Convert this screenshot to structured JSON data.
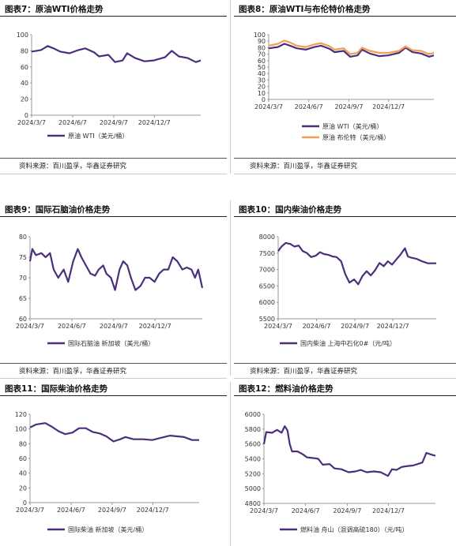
{
  "sources": {
    "row1_left": "资料来源：百川盈孚，华鑫证券研究",
    "row1_right": "资料来源：百川盈孚，华鑫证券研究",
    "row2_left": "资料来源：百川盈孚，华鑫证券研究",
    "row2_right": "资料来源：百川盈孚，华鑫证券研究"
  },
  "colors": {
    "purple": "#4b2f7f",
    "orange": "#f0a050",
    "axis": "#999999",
    "text": "#333333"
  },
  "chart_data": [
    {
      "id": "c7",
      "title": "图表7：原油WTI价格走势",
      "type": "line",
      "ylim": [
        0,
        100
      ],
      "yticks": [
        0,
        20,
        40,
        60,
        80,
        100
      ],
      "xticks": [
        "2024/3/7",
        "2024/6/7",
        "2024/9/7",
        "2024/12/7"
      ],
      "x_domain": [
        "2024/3/7",
        "2025/3/21"
      ],
      "series": [
        {
          "name": "原油 WTI（美元/桶）",
          "color": "#4b2f7f",
          "points": [
            [
              "2024/3/7",
              79
            ],
            [
              "2024/3/28",
              81
            ],
            [
              "2024/4/12",
              86
            ],
            [
              "2024/4/25",
              83
            ],
            [
              "2024/5/10",
              79
            ],
            [
              "2024/5/31",
              77
            ],
            [
              "2024/6/20",
              81
            ],
            [
              "2024/7/5",
              83
            ],
            [
              "2024/7/25",
              78
            ],
            [
              "2024/8/5",
              73
            ],
            [
              "2024/8/26",
              75
            ],
            [
              "2024/9/10",
              66
            ],
            [
              "2024/9/27",
              68
            ],
            [
              "2024/10/7",
              77
            ],
            [
              "2024/10/25",
              71
            ],
            [
              "2024/11/15",
              67
            ],
            [
              "2024/12/6",
              68
            ],
            [
              "2024/12/31",
              72
            ],
            [
              "2025/1/15",
              80
            ],
            [
              "2025/1/31",
              73
            ],
            [
              "2025/2/20",
              71
            ],
            [
              "2025/3/10",
              66
            ],
            [
              "2025/3/21",
              68
            ]
          ]
        }
      ]
    },
    {
      "id": "c8",
      "title": "图表8：原油WTI与布伦特价格走势",
      "type": "line",
      "ylim": [
        0,
        100
      ],
      "yticks": [
        0,
        10,
        20,
        30,
        40,
        50,
        60,
        70,
        80,
        90,
        100
      ],
      "xticks": [
        "2024/3/7",
        "2024/6/7",
        "2024/9/7",
        "2024/12/7"
      ],
      "x_domain": [
        "2024/3/7",
        "2025/3/21"
      ],
      "series": [
        {
          "name": "原油 WTI（美元/桶）",
          "color": "#4b2f7f",
          "points": [
            [
              "2024/3/7",
              79
            ],
            [
              "2024/3/28",
              81
            ],
            [
              "2024/4/12",
              86
            ],
            [
              "2024/4/25",
              83
            ],
            [
              "2024/5/10",
              79
            ],
            [
              "2024/5/31",
              77
            ],
            [
              "2024/6/20",
              81
            ],
            [
              "2024/7/5",
              83
            ],
            [
              "2024/7/25",
              78
            ],
            [
              "2024/8/5",
              73
            ],
            [
              "2024/8/26",
              75
            ],
            [
              "2024/9/10",
              66
            ],
            [
              "2024/9/27",
              68
            ],
            [
              "2024/10/7",
              77
            ],
            [
              "2024/10/25",
              71
            ],
            [
              "2024/11/15",
              67
            ],
            [
              "2024/12/6",
              68
            ],
            [
              "2024/12/31",
              72
            ],
            [
              "2025/1/15",
              80
            ],
            [
              "2025/1/31",
              73
            ],
            [
              "2025/2/20",
              71
            ],
            [
              "2025/3/10",
              66
            ],
            [
              "2025/3/21",
              68
            ]
          ]
        },
        {
          "name": "原油 布伦特（美元/桶）",
          "color": "#f0a050",
          "points": [
            [
              "2024/3/7",
              83
            ],
            [
              "2024/3/28",
              86
            ],
            [
              "2024/4/12",
              91
            ],
            [
              "2024/4/25",
              88
            ],
            [
              "2024/5/10",
              83
            ],
            [
              "2024/5/31",
              81
            ],
            [
              "2024/6/20",
              85
            ],
            [
              "2024/7/5",
              87
            ],
            [
              "2024/7/25",
              82
            ],
            [
              "2024/8/5",
              77
            ],
            [
              "2024/8/26",
              79
            ],
            [
              "2024/9/10",
              70
            ],
            [
              "2024/9/27",
              72
            ],
            [
              "2024/10/7",
              80
            ],
            [
              "2024/10/25",
              75
            ],
            [
              "2024/11/15",
              72
            ],
            [
              "2024/12/6",
              72
            ],
            [
              "2024/12/31",
              75
            ],
            [
              "2025/1/15",
              82
            ],
            [
              "2025/1/31",
              76
            ],
            [
              "2025/2/20",
              75
            ],
            [
              "2025/3/10",
              70
            ],
            [
              "2025/3/21",
              72
            ]
          ]
        }
      ]
    },
    {
      "id": "c9",
      "title": "图表9：国际石脑油价格走势",
      "type": "line",
      "ylim": [
        60,
        80
      ],
      "yticks": [
        60,
        65,
        70,
        75,
        80
      ],
      "xticks": [
        "2024/3/7",
        "2024/6/7",
        "2024/9/7",
        "2024/12/7"
      ],
      "x_domain": [
        "2024/3/7",
        "2025/3/21"
      ],
      "series": [
        {
          "name": "国际石脑油 新加坡（美元/桶）",
          "color": "#4b2f7f",
          "points": [
            [
              "2024/3/7",
              74
            ],
            [
              "2024/3/12",
              77
            ],
            [
              "2024/3/20",
              75.5
            ],
            [
              "2024/4/1",
              76
            ],
            [
              "2024/4/10",
              75
            ],
            [
              "2024/4/20",
              76
            ],
            [
              "2024/4/28",
              72
            ],
            [
              "2024/5/8",
              70
            ],
            [
              "2024/5/20",
              72
            ],
            [
              "2024/5/30",
              69
            ],
            [
              "2024/6/10",
              74
            ],
            [
              "2024/6/20",
              77
            ],
            [
              "2024/6/28",
              75
            ],
            [
              "2024/7/8",
              73
            ],
            [
              "2024/7/18",
              71
            ],
            [
              "2024/7/28",
              70.5
            ],
            [
              "2024/8/5",
              72
            ],
            [
              "2024/8/15",
              73
            ],
            [
              "2024/8/22",
              71
            ],
            [
              "2024/9/1",
              70
            ],
            [
              "2024/9/10",
              67
            ],
            [
              "2024/9/20",
              72
            ],
            [
              "2024/9/28",
              74
            ],
            [
              "2024/10/7",
              73
            ],
            [
              "2024/10/15",
              70
            ],
            [
              "2024/10/25",
              67
            ],
            [
              "2024/11/5",
              68
            ],
            [
              "2024/11/15",
              70
            ],
            [
              "2024/11/25",
              70
            ],
            [
              "2024/12/6",
              69
            ],
            [
              "2024/12/16",
              71
            ],
            [
              "2024/12/26",
              72
            ],
            [
              "2025/1/5",
              72
            ],
            [
              "2025/1/15",
              75
            ],
            [
              "2025/1/25",
              74
            ],
            [
              "2025/2/5",
              72
            ],
            [
              "2025/2/15",
              72.5
            ],
            [
              "2025/2/25",
              72
            ],
            [
              "2025/3/5",
              70
            ],
            [
              "2025/3/12",
              72
            ],
            [
              "2025/3/21",
              67.5
            ]
          ]
        }
      ]
    },
    {
      "id": "c10",
      "title": "图表10：国内柴油价格走势",
      "type": "line",
      "ylim": [
        5500,
        8000
      ],
      "yticks": [
        5500,
        6000,
        6500,
        7000,
        7500,
        8000
      ],
      "xticks": [
        "2024/3/7",
        "2024/6/7",
        "2024/9/7",
        "2024/12/7"
      ],
      "x_domain": [
        "2024/3/7",
        "2025/3/21"
      ],
      "series": [
        {
          "name": "国内柴油 上海中石化0#（元/吨）",
          "color": "#4b2f7f",
          "points": [
            [
              "2024/3/7",
              7560
            ],
            [
              "2024/3/15",
              7700
            ],
            [
              "2024/3/25",
              7810
            ],
            [
              "2024/4/5",
              7780
            ],
            [
              "2024/4/15",
              7700
            ],
            [
              "2024/4/25",
              7730
            ],
            [
              "2024/5/5",
              7560
            ],
            [
              "2024/5/15",
              7500
            ],
            [
              "2024/5/25",
              7380
            ],
            [
              "2024/6/5",
              7420
            ],
            [
              "2024/6/15",
              7530
            ],
            [
              "2024/6/25",
              7470
            ],
            [
              "2024/7/5",
              7450
            ],
            [
              "2024/7/15",
              7400
            ],
            [
              "2024/7/25",
              7380
            ],
            [
              "2024/8/5",
              7250
            ],
            [
              "2024/8/15",
              6850
            ],
            [
              "2024/8/25",
              6600
            ],
            [
              "2024/9/5",
              6700
            ],
            [
              "2024/9/15",
              6550
            ],
            [
              "2024/9/25",
              6800
            ],
            [
              "2024/10/5",
              6950
            ],
            [
              "2024/10/15",
              6820
            ],
            [
              "2024/10/25",
              6970
            ],
            [
              "2024/11/5",
              7200
            ],
            [
              "2024/11/15",
              7100
            ],
            [
              "2024/11/25",
              7250
            ],
            [
              "2024/12/5",
              7150
            ],
            [
              "2024/12/15",
              7300
            ],
            [
              "2024/12/25",
              7450
            ],
            [
              "2025/1/5",
              7650
            ],
            [
              "2025/1/12",
              7400
            ],
            [
              "2025/1/20",
              7360
            ],
            [
              "2025/2/1",
              7330
            ],
            [
              "2025/2/15",
              7250
            ],
            [
              "2025/3/1",
              7190
            ],
            [
              "2025/3/21",
              7190
            ]
          ]
        }
      ]
    },
    {
      "id": "c11",
      "title": "图表11：国际柴油价格走势",
      "type": "line",
      "ylim": [
        0,
        120
      ],
      "yticks": [
        0,
        20,
        40,
        60,
        80,
        100,
        120
      ],
      "xticks": [
        "2024/3/7",
        "2024/6/7",
        "2024/9/7",
        "2024/12/7"
      ],
      "x_domain": [
        "2024/3/7",
        "2025/3/21"
      ],
      "series": [
        {
          "name": "国际柴油 新加坡（美元/桶）",
          "color": "#4b2f7f",
          "points": [
            [
              "2024/3/7",
              102
            ],
            [
              "2024/3/20",
              106
            ],
            [
              "2024/4/10",
              108
            ],
            [
              "2024/4/25",
              103
            ],
            [
              "2024/5/10",
              97
            ],
            [
              "2024/5/25",
              93
            ],
            [
              "2024/6/10",
              95
            ],
            [
              "2024/6/25",
              101
            ],
            [
              "2024/7/10",
              101
            ],
            [
              "2024/7/25",
              96
            ],
            [
              "2024/8/10",
              94
            ],
            [
              "2024/8/25",
              90
            ],
            [
              "2024/9/10",
              83
            ],
            [
              "2024/9/25",
              86
            ],
            [
              "2024/10/7",
              89
            ],
            [
              "2024/10/25",
              86
            ],
            [
              "2024/11/15",
              86
            ],
            [
              "2024/12/6",
              85
            ],
            [
              "2024/12/25",
              88
            ],
            [
              "2025/1/15",
              91
            ],
            [
              "2025/1/31",
              90
            ],
            [
              "2025/2/15",
              89
            ],
            [
              "2025/3/5",
              85
            ],
            [
              "2025/3/21",
              85
            ]
          ]
        }
      ]
    },
    {
      "id": "c12",
      "title": "图表12：燃料油价格走势",
      "type": "line",
      "ylim": [
        4800,
        6000
      ],
      "yticks": [
        4800,
        5000,
        5200,
        5400,
        5600,
        5800,
        6000
      ],
      "xticks": [
        "2024/3/7",
        "2024/6/7",
        "2024/9/7",
        "2024/12/7"
      ],
      "x_domain": [
        "2024/3/7",
        "2025/3/21"
      ],
      "series": [
        {
          "name": "燃料油 舟山（混调高硫180）（元/吨）",
          "color": "#4b2f7f",
          "points": [
            [
              "2024/3/7",
              5600
            ],
            [
              "2024/3/12",
              5760
            ],
            [
              "2024/3/25",
              5750
            ],
            [
              "2024/4/5",
              5790
            ],
            [
              "2024/4/15",
              5750
            ],
            [
              "2024/4/22",
              5840
            ],
            [
              "2024/4/28",
              5780
            ],
            [
              "2024/5/3",
              5600
            ],
            [
              "2024/5/8",
              5500
            ],
            [
              "2024/5/20",
              5500
            ],
            [
              "2024/6/1",
              5460
            ],
            [
              "2024/6/10",
              5420
            ],
            [
              "2024/6/25",
              5410
            ],
            [
              "2024/7/5",
              5400
            ],
            [
              "2024/7/15",
              5320
            ],
            [
              "2024/7/30",
              5330
            ],
            [
              "2024/8/10",
              5270
            ],
            [
              "2024/8/25",
              5260
            ],
            [
              "2024/9/10",
              5220
            ],
            [
              "2024/9/25",
              5230
            ],
            [
              "2024/10/7",
              5250
            ],
            [
              "2024/10/20",
              5220
            ],
            [
              "2024/11/5",
              5230
            ],
            [
              "2024/11/20",
              5220
            ],
            [
              "2024/12/6",
              5170
            ],
            [
              "2024/12/15",
              5260
            ],
            [
              "2024/12/25",
              5250
            ],
            [
              "2025/1/5",
              5290
            ],
            [
              "2025/1/15",
              5300
            ],
            [
              "2025/1/30",
              5310
            ],
            [
              "2025/2/10",
              5330
            ],
            [
              "2025/2/20",
              5350
            ],
            [
              "2025/3/1",
              5480
            ],
            [
              "2025/3/10",
              5460
            ],
            [
              "2025/3/21",
              5440
            ]
          ]
        }
      ]
    }
  ]
}
